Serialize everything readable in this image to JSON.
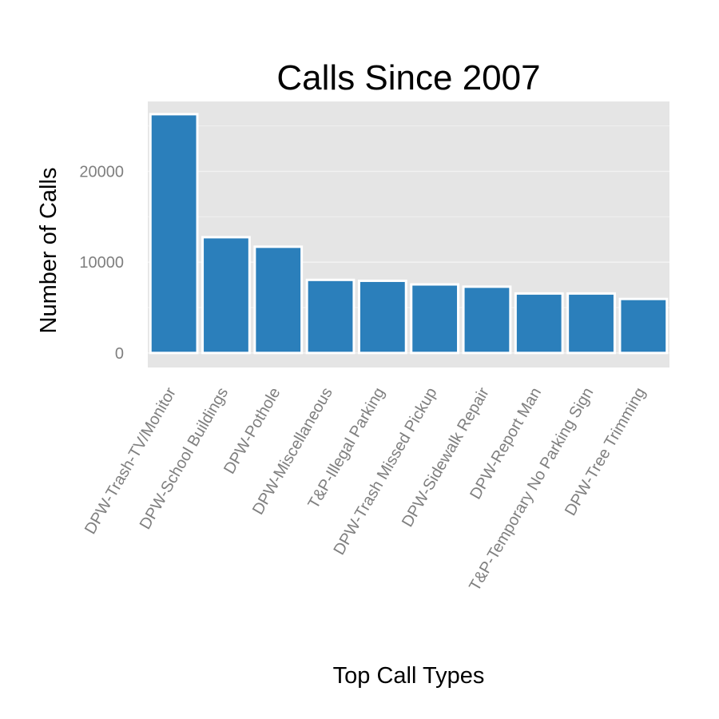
{
  "chart_data": {
    "type": "bar",
    "title": "Calls Since 2007",
    "xlabel": "Top Call Types",
    "ylabel": "Number of Calls",
    "categories": [
      "DPW-Trash-TV/Monitor",
      "DPW-School Buildings",
      "DPW-Pothole",
      "DPW-Miscellaneous",
      "T&P-Illegal Parking",
      "DPW-Trash Missed Pickup",
      "DPW-Sidewalk Repair",
      "DPW-Report Man",
      "T&P-Temporary No Parking Sign",
      "DPW-Tree Trimming"
    ],
    "values": [
      26300,
      12750,
      11700,
      8050,
      7950,
      7550,
      7300,
      6550,
      6550,
      5950
    ],
    "yticks": [
      0,
      10000,
      20000
    ],
    "ylim": [
      -1600,
      27700
    ],
    "grid": true,
    "legend": "none",
    "colors": {
      "bar": "#2b7fbb",
      "bar_outline": "#ffffff",
      "panel": "#e5e5e5",
      "grid": "#f2f2f2",
      "tick_text": "#7f7f7f"
    }
  }
}
